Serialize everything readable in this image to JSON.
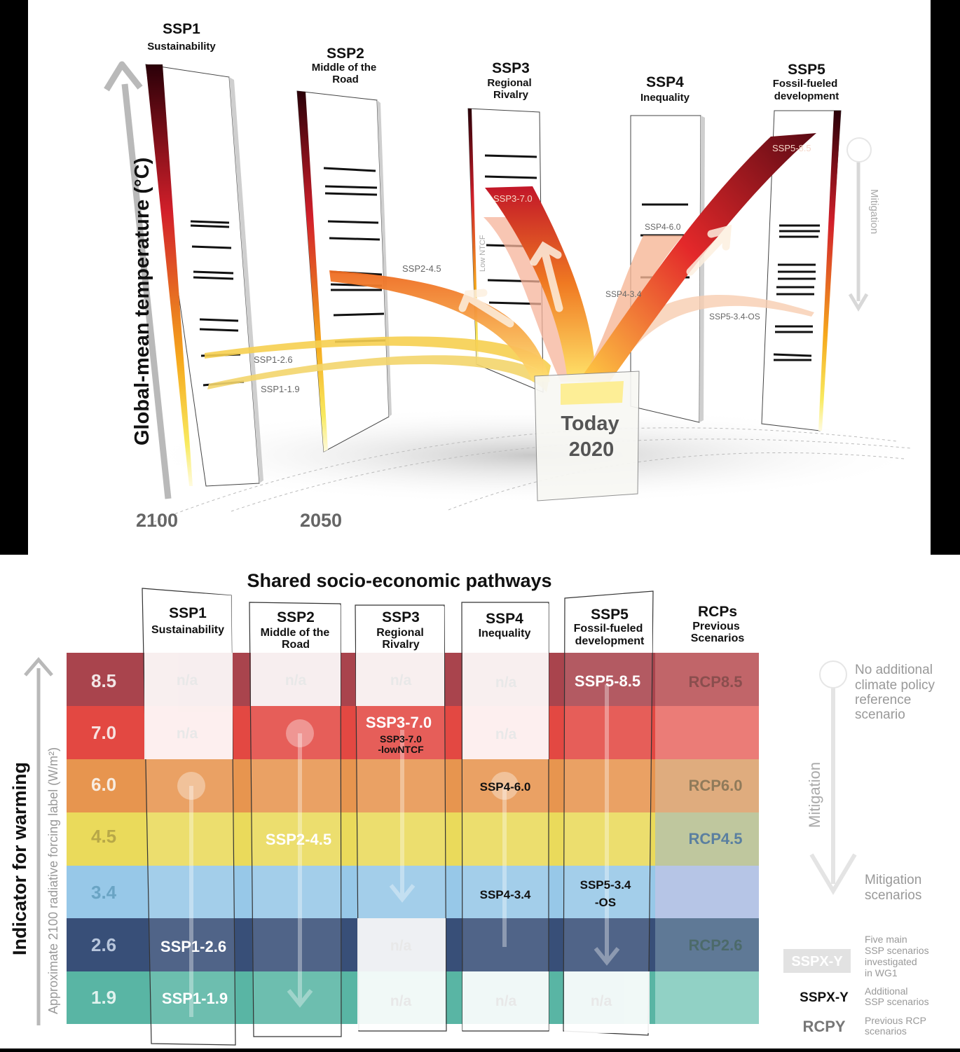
{
  "top": {
    "y_axis_label": "Global-mean temperature (°C)",
    "year_labels": [
      "2100",
      "2050"
    ],
    "today_label": "Today",
    "today_year": "2020",
    "mitigation_label": "Mitigation",
    "ssp_panels": [
      {
        "code": "SSP1",
        "name_lines": [
          "Sustainability"
        ]
      },
      {
        "code": "SSP2",
        "name_lines": [
          "Middle of the",
          "Road"
        ]
      },
      {
        "code": "SSP3",
        "name_lines": [
          "Regional",
          "Rivalry"
        ]
      },
      {
        "code": "SSP4",
        "name_lines": [
          "Inequality"
        ]
      },
      {
        "code": "SSP5",
        "name_lines": [
          "Fossil-fueled",
          "development"
        ]
      }
    ],
    "pathway_labels": {
      "ssp1_26": "SSP1-2.6",
      "ssp1_19": "SSP1-1.9",
      "ssp2_45": "SSP2-4.5",
      "ssp3_70": "SSP3-7.0",
      "low_ntcf": "Low NTCF",
      "ssp4_60": "SSP4-6.0",
      "ssp4_34": "SSP4-3.4",
      "ssp5_85": "SSP5-8.5",
      "ssp5_34os": "SSP5-3.4-OS"
    }
  },
  "bottom": {
    "title": "Shared socio-economic pathways",
    "y_axis_label": "Indicator for warming",
    "y_axis_sublabel": "Approximate 2100 radiative forcing label (W/m²)",
    "columns": [
      {
        "code": "SSP1",
        "name_lines": [
          "Sustainability"
        ]
      },
      {
        "code": "SSP2",
        "name_lines": [
          "Middle of the",
          "Road"
        ]
      },
      {
        "code": "SSP3",
        "name_lines": [
          "Regional",
          "Rivalry"
        ]
      },
      {
        "code": "SSP4",
        "name_lines": [
          "Inequality"
        ]
      },
      {
        "code": "SSP5",
        "name_lines": [
          "Fossil-fueled",
          "development"
        ]
      },
      {
        "code": "RCPs",
        "name_lines": [
          "Previous",
          "Scenarios"
        ]
      }
    ],
    "rows": [
      {
        "level": "8.5",
        "color": "#a0303a"
      },
      {
        "level": "7.0",
        "color": "#e0352e"
      },
      {
        "level": "6.0",
        "color": "#e58a3c"
      },
      {
        "level": "4.5",
        "color": "#e8d64a"
      },
      {
        "level": "3.4",
        "color": "#8cc3e6"
      },
      {
        "level": "2.6",
        "color": "#233d6a"
      },
      {
        "level": "1.9",
        "color": "#47ad9a"
      }
    ],
    "cells": {
      "na": "n/a",
      "ssp5_85": "SSP5-8.5",
      "ssp3_70": "SSP3-7.0",
      "ssp3_70_low": [
        "SSP3-7.0",
        "-lowNTCF"
      ],
      "ssp4_60": "SSP4-6.0",
      "ssp2_45": "SSP2-4.5",
      "ssp4_34": "SSP4-3.4",
      "ssp5_34os": [
        "SSP5-3.4",
        "-OS"
      ],
      "ssp1_26": "SSP1-2.6",
      "ssp1_19": "SSP1-1.9",
      "rcp85": "RCP8.5",
      "rcp60": "RCP6.0",
      "rcp45": "RCP4.5",
      "rcp26": "RCP2.6"
    },
    "legend": {
      "no_policy_lines": [
        "No additional",
        "climate policy",
        "reference",
        "scenario"
      ],
      "mitigation": "Mitigation",
      "mitigation_scenarios_lines": [
        "Mitigation",
        "scenarios"
      ],
      "sample_main": "SSPX-Y",
      "sample_main_desc_lines": [
        "Five main",
        "SSP scenarios",
        "investigated",
        "in WG1"
      ],
      "sample_additional": "SSPX-Y",
      "sample_additional_desc_lines": [
        "Additional",
        "SSP scenarios"
      ],
      "sample_rcp": "RCPY",
      "sample_rcp_desc_lines": [
        "Previous RCP",
        "scenarios"
      ]
    }
  }
}
